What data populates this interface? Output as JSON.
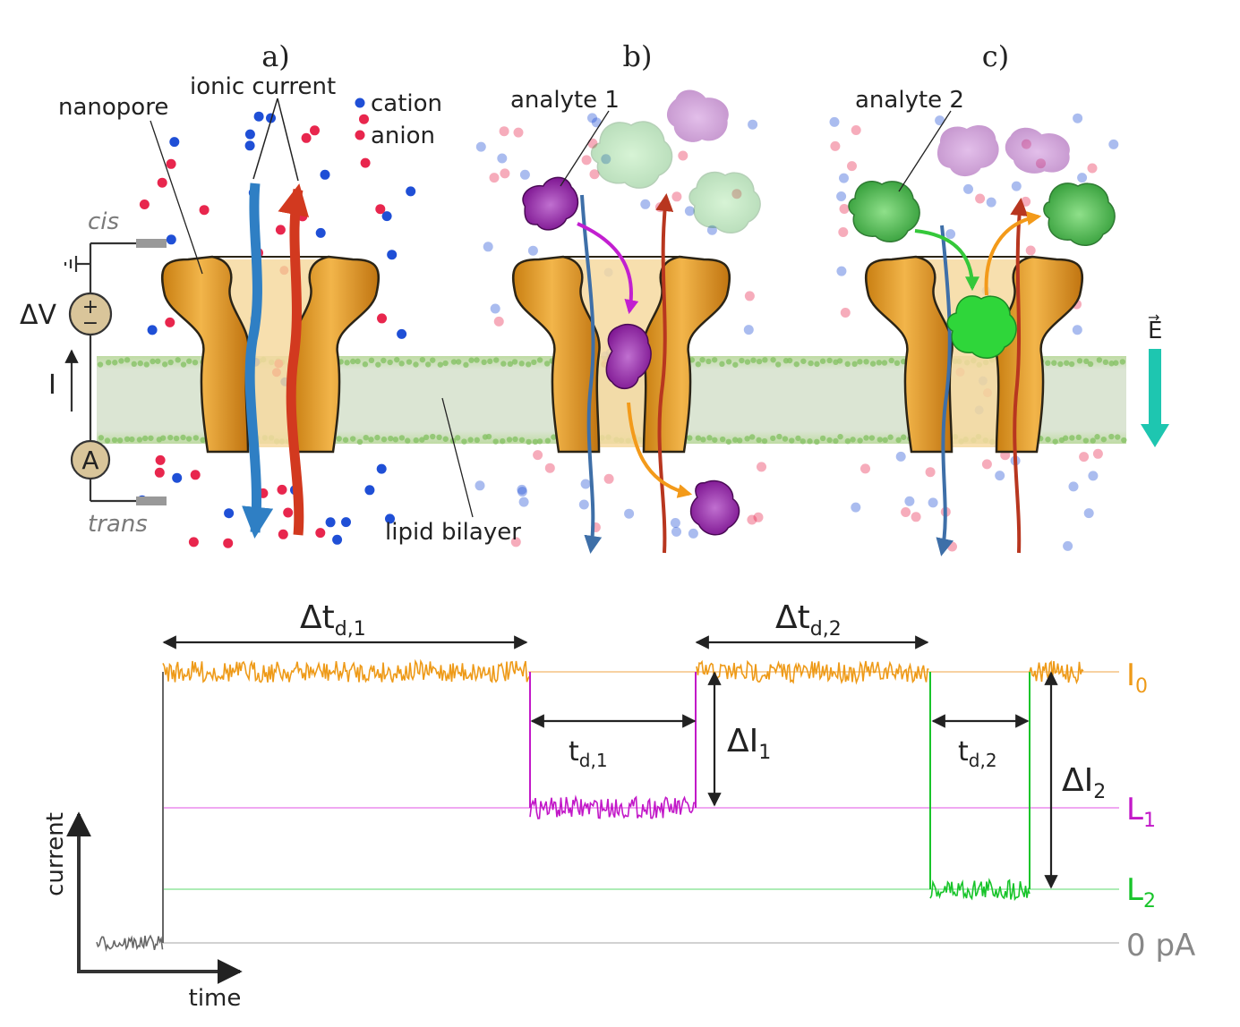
{
  "panels": [
    {
      "label": "a)"
    },
    {
      "label": "b)"
    },
    {
      "label": "c)"
    }
  ],
  "labels": {
    "ionic_current": "ionic current",
    "cation": "cation",
    "anion": "anion",
    "nanopore": "nanopore",
    "cis": "cis",
    "trans": "trans",
    "delta_v": "ΔV",
    "current_i": "I",
    "ammeter": "A",
    "plus": "+",
    "minus": "−",
    "lipid_bilayer": "lipid bilayer",
    "analyte_1": "analyte 1",
    "analyte_2": "analyte 2",
    "field": "E",
    "field_arrow": "→"
  },
  "colors": {
    "cation": "#1f4fd6",
    "anion": "#e8264d",
    "pore": "#e9a23b",
    "membrane": "#8fbf6a",
    "analyte_1": "#8a1aa0",
    "analyte_2": "#3bb54a",
    "field": "#1ec6b0",
    "trace_open": "#ee9a18",
    "trace_l1": "#c218c8",
    "trace_l2": "#18c42a",
    "trace_base": "#666666"
  },
  "trace": {
    "axis_y": "current",
    "axis_x": "time",
    "levels": [
      {
        "name": "I",
        "sub": "0",
        "color": "#ee9a18"
      },
      {
        "name": "L",
        "sub": "1",
        "color": "#c218c8"
      },
      {
        "name": "L",
        "sub": "2",
        "color": "#18c42a"
      },
      {
        "name": "0 pA",
        "sub": "",
        "color": "#888888"
      }
    ],
    "dt1": {
      "main": "Δt",
      "sub": "d,1"
    },
    "dt2": {
      "main": "Δt",
      "sub": "d,2"
    },
    "td1": {
      "main": "t",
      "sub": "d,1"
    },
    "td2": {
      "main": "t",
      "sub": "d,2"
    },
    "di1": {
      "main": "ΔI",
      "sub": "1"
    },
    "di2": {
      "main": "ΔI",
      "sub": "2"
    }
  }
}
